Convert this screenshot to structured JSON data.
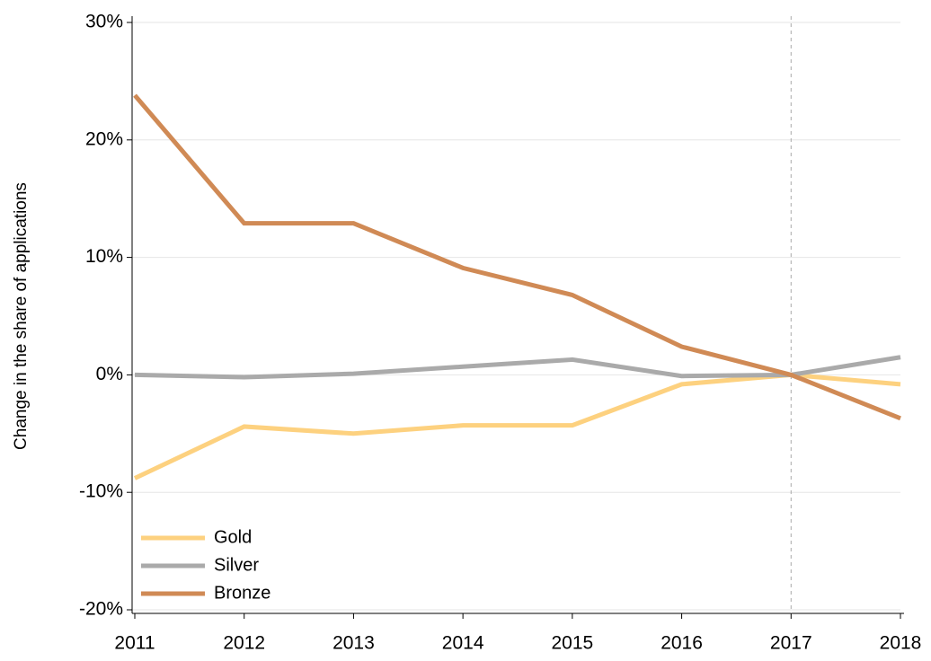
{
  "chart_data": {
    "type": "line",
    "y_label": "Change in the share of applications",
    "x": [
      2011,
      2012,
      2013,
      2014,
      2015,
      2016,
      2017,
      2018
    ],
    "series": [
      {
        "name": "Gold",
        "color": "#fdd17f",
        "values": [
          -8.8,
          -4.4,
          -5.0,
          -4.3,
          -4.3,
          -0.8,
          0,
          -0.8
        ]
      },
      {
        "name": "Silver",
        "color": "#aaaaaa",
        "values": [
          0,
          -0.2,
          0.1,
          0.7,
          1.3,
          -0.1,
          0,
          1.5
        ]
      },
      {
        "name": "Bronze",
        "color": "#d08a55",
        "values": [
          23.8,
          12.9,
          12.9,
          9.1,
          6.8,
          2.4,
          0,
          -3.7
        ]
      }
    ],
    "xlim": [
      2011,
      2018
    ],
    "xticks": [
      2011,
      2012,
      2013,
      2014,
      2015,
      2016,
      2017,
      2018
    ],
    "ylim": [
      -20,
      30
    ],
    "yticks": [
      {
        "value": -20,
        "label": "-20%"
      },
      {
        "value": -10,
        "label": "-10%"
      },
      {
        "value": 0,
        "label": "0%"
      },
      {
        "value": 10,
        "label": "10%"
      },
      {
        "value": 20,
        "label": "20%"
      },
      {
        "value": 30,
        "label": "30%"
      }
    ],
    "reference_x": 2017,
    "grid": true,
    "legend": "bottom-left"
  }
}
